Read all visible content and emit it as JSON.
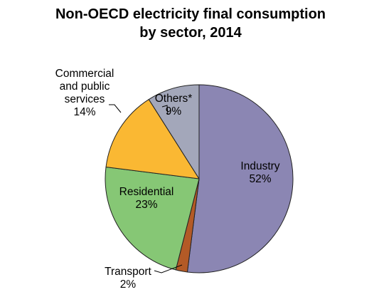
{
  "chart_data": {
    "type": "pie",
    "title": "Non-OECD electricity final consumption by sector, 2014",
    "title_lines": [
      "Non-OECD electricity final consumption",
      "by sector, 2014"
    ],
    "start_angle_deg": 0,
    "direction": "clockwise",
    "slices": [
      {
        "name": "Industry",
        "value": 52,
        "label_lines": [
          "Industry"
        ],
        "value_label": "52%",
        "color": "#8b86b3"
      },
      {
        "name": "Transport",
        "value": 2,
        "label_lines": [
          "Transport"
        ],
        "value_label": "2%",
        "color": "#b35a26"
      },
      {
        "name": "Residential",
        "value": 23,
        "label_lines": [
          "Residential"
        ],
        "value_label": "23%",
        "color": "#86c775"
      },
      {
        "name": "Commercial and public services",
        "value": 14,
        "label_lines": [
          "Commercial",
          "and public",
          "services"
        ],
        "value_label": "14%",
        "color": "#fab833"
      },
      {
        "name": "Others*",
        "value": 9,
        "label_lines": [
          "Others*"
        ],
        "value_label": "9%",
        "color": "#a3a7ba"
      }
    ]
  }
}
